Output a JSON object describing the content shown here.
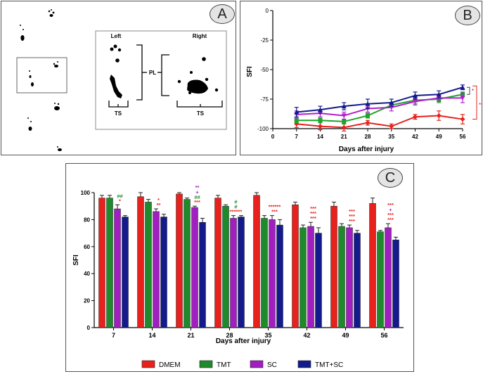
{
  "panel_a": {
    "badge": "A",
    "left_label": "Left",
    "right_label": "Right",
    "pl_label": "PL",
    "ts_left": "TS",
    "ts_right": "TS"
  },
  "chart_data": [
    {
      "id": "B",
      "badge": "B",
      "type": "line",
      "xlabel": "Days after injury",
      "ylabel": "SFI",
      "x": [
        7,
        14,
        21,
        28,
        35,
        42,
        49,
        56
      ],
      "xticks": [
        "0",
        "7",
        "14",
        "21",
        "28",
        "35",
        "42",
        "49",
        "56"
      ],
      "xlim": [
        0,
        56
      ],
      "ylim": [
        -100,
        0
      ],
      "yticks": [
        "0",
        "-25",
        "-50",
        "-75",
        "-100"
      ],
      "series": [
        {
          "name": "DMEM",
          "color": "#e8211c",
          "marker": "diamond",
          "values": [
            -96,
            -98,
            -99,
            -95,
            -98,
            -90,
            -89,
            -92
          ],
          "errors": [
            3,
            3,
            3,
            2,
            2,
            2,
            4,
            4
          ]
        },
        {
          "name": "TMT",
          "color": "#1ea42a",
          "marker": "square",
          "values": [
            -93,
            -93,
            -94,
            -89,
            -80,
            -76,
            -75,
            -71
          ],
          "errors": [
            2,
            2,
            2,
            2,
            2,
            3,
            3,
            2
          ]
        },
        {
          "name": "SC",
          "color": "#b41fd0",
          "marker": "triangle-down",
          "values": [
            -88,
            -87,
            -89,
            -83,
            -82,
            -77,
            -74,
            -74
          ],
          "errors": [
            3,
            3,
            3,
            3,
            3,
            3,
            3,
            4
          ]
        },
        {
          "name": "TMT+SC",
          "color": "#131a8c",
          "marker": "triangle-up",
          "values": [
            -86,
            -84,
            -81,
            -79,
            -78,
            -72,
            -71,
            -65
          ],
          "errors": [
            4,
            3,
            3,
            4,
            3,
            3,
            3,
            2
          ]
        }
      ],
      "annotations": [
        {
          "text": "*",
          "color": "#444444"
        },
        {
          "text": "***",
          "color": "#e8211c"
        }
      ]
    },
    {
      "id": "C",
      "badge": "C",
      "type": "bar",
      "xlabel": "Days after injury",
      "ylabel": "SFI",
      "categories": [
        "7",
        "14",
        "21",
        "28",
        "35",
        "42",
        "49",
        "56"
      ],
      "ylim": [
        0,
        100
      ],
      "yticks": [
        "0",
        "20",
        "40",
        "60",
        "80",
        "100"
      ],
      "series": [
        {
          "name": "DMEM",
          "color": "#e8211c",
          "values": [
            96,
            97,
            99,
            96,
            98,
            91,
            90,
            92
          ],
          "errors": [
            2,
            3,
            1,
            2,
            2,
            2,
            3,
            4
          ]
        },
        {
          "name": "TMT",
          "color": "#1f8a2c",
          "values": [
            96,
            93,
            95,
            90,
            81,
            74,
            75,
            71
          ],
          "errors": [
            2,
            2,
            1,
            1,
            2,
            2,
            2,
            1
          ]
        },
        {
          "name": "SC",
          "color": "#a11fc0",
          "values": [
            88,
            86,
            89,
            81,
            80,
            75,
            74,
            74
          ],
          "errors": [
            3,
            2,
            1,
            2,
            3,
            3,
            2,
            3
          ]
        },
        {
          "name": "TMT+SC",
          "color": "#131a8c",
          "values": [
            82,
            82,
            78,
            82,
            76,
            70,
            70,
            65
          ],
          "errors": [
            1,
            2,
            3,
            1,
            4,
            4,
            2,
            2
          ]
        }
      ],
      "significance": [
        {
          "category": "7",
          "labels": [
            {
              "text": "##",
              "color": "#1f8a2c"
            },
            {
              "text": "*",
              "color": "#e8211c"
            }
          ]
        },
        {
          "category": "14",
          "labels": [
            {
              "text": "*",
              "color": "#e8211c"
            },
            {
              "text": "**",
              "color": "#e8211c"
            }
          ]
        },
        {
          "category": "21",
          "labels": [
            {
              "text": "**",
              "color": "#a11fc0"
            },
            {
              "text": "+",
              "color": "#a11fc0"
            },
            {
              "text": "##",
              "color": "#1f8a2c"
            },
            {
              "text": "***",
              "color": "#e8211c"
            }
          ]
        },
        {
          "category": "28",
          "labels": [
            {
              "text": "#",
              "color": "#1f8a2c"
            },
            {
              "text": "#",
              "color": "#1f8a2c"
            },
            {
              "text": "******",
              "color": "#e8211c"
            }
          ]
        },
        {
          "category": "35",
          "labels": [
            {
              "text": "******",
              "color": "#e8211c"
            },
            {
              "text": "***",
              "color": "#e8211c"
            }
          ]
        },
        {
          "category": "42",
          "labels": [
            {
              "text": "***",
              "color": "#e8211c"
            },
            {
              "text": "***",
              "color": "#e8211c"
            },
            {
              "text": "***",
              "color": "#e8211c"
            }
          ]
        },
        {
          "category": "49",
          "labels": [
            {
              "text": "***",
              "color": "#e8211c"
            },
            {
              "text": "***",
              "color": "#e8211c"
            },
            {
              "text": "***",
              "color": "#e8211c"
            }
          ]
        },
        {
          "category": "56",
          "labels": [
            {
              "text": "***",
              "color": "#e8211c"
            },
            {
              "text": "+",
              "color": "#a11fc0"
            },
            {
              "text": "***",
              "color": "#e8211c"
            },
            {
              "text": "***",
              "color": "#e8211c"
            }
          ]
        }
      ],
      "legend": [
        "DMEM",
        "TMT",
        "SC",
        "TMT+SC"
      ]
    }
  ]
}
